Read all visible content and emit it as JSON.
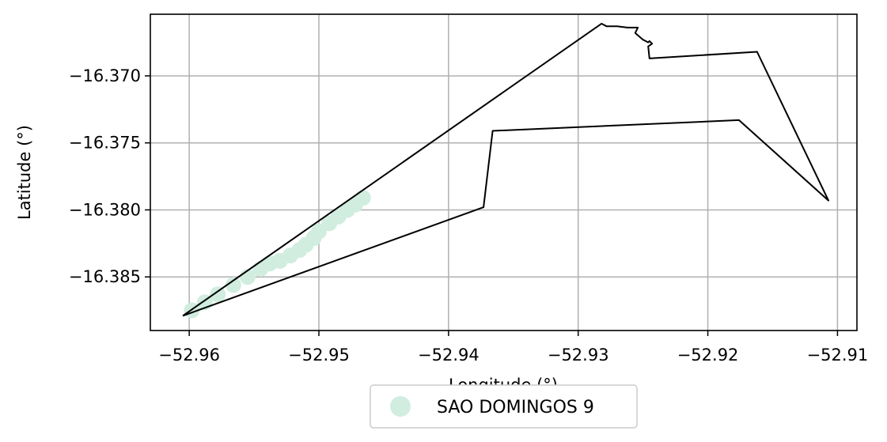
{
  "chart_data": {
    "type": "scatter",
    "title": "",
    "xlabel": "Longitude (°)",
    "ylabel": "Latitude (°)",
    "xlim": [
      -52.963,
      -52.9085
    ],
    "ylim": [
      -16.389,
      -16.3654
    ],
    "xticks": [
      -52.96,
      -52.95,
      -52.94,
      -52.93,
      -52.92,
      -52.91
    ],
    "xtick_labels": [
      "−52.96",
      "−52.95",
      "−52.94",
      "−52.93",
      "−52.92",
      "−52.91"
    ],
    "yticks": [
      -16.37,
      -16.375,
      -16.38,
      -16.385
    ],
    "ytick_labels": [
      "−16.370",
      "−16.375",
      "−16.380",
      "−16.385"
    ],
    "grid": true,
    "legend_placement": "bottom-center",
    "boundary_color": "#000000",
    "series": [
      {
        "name": "SAO DOMINGOS 9",
        "color": "#d0ede0",
        "points": [
          [
            -52.9598,
            -16.3875
          ],
          [
            -52.9588,
            -16.3869
          ],
          [
            -52.9578,
            -16.3863
          ],
          [
            -52.9566,
            -16.3856
          ],
          [
            -52.9555,
            -16.385
          ],
          [
            -52.9545,
            -16.3844
          ],
          [
            -52.9538,
            -16.384
          ],
          [
            -52.953,
            -16.3838
          ],
          [
            -52.9522,
            -16.3834
          ],
          [
            -52.9515,
            -16.383
          ],
          [
            -52.951,
            -16.3826
          ],
          [
            -52.9504,
            -16.3821
          ],
          [
            -52.95,
            -16.3816
          ],
          [
            -52.9492,
            -16.381
          ],
          [
            -52.9485,
            -16.3805
          ],
          [
            -52.9478,
            -16.38
          ],
          [
            -52.9472,
            -16.3796
          ],
          [
            -52.9466,
            -16.3791
          ]
        ]
      }
    ],
    "boundary": [
      [
        -52.9605,
        -16.3879
      ],
      [
        -52.9282,
        -16.3661
      ],
      [
        -52.9278,
        -16.3663
      ],
      [
        -52.927,
        -16.3663
      ],
      [
        -52.9262,
        -16.3664
      ],
      [
        -52.9254,
        -16.3664
      ],
      [
        -52.9256,
        -16.3668
      ],
      [
        -52.925,
        -16.3673
      ],
      [
        -52.9248,
        -16.3674
      ],
      [
        -52.9246,
        -16.3675
      ],
      [
        -52.9245,
        -16.3674
      ],
      [
        -52.9243,
        -16.3676
      ],
      [
        -52.9246,
        -16.3678
      ],
      [
        -52.9245,
        -16.3687
      ],
      [
        -52.9162,
        -16.3682
      ],
      [
        -52.9107,
        -16.3793
      ],
      [
        -52.9176,
        -16.3733
      ],
      [
        -52.9366,
        -16.3741
      ],
      [
        -52.9373,
        -16.3798
      ],
      [
        -52.9605,
        -16.3879
      ]
    ]
  }
}
